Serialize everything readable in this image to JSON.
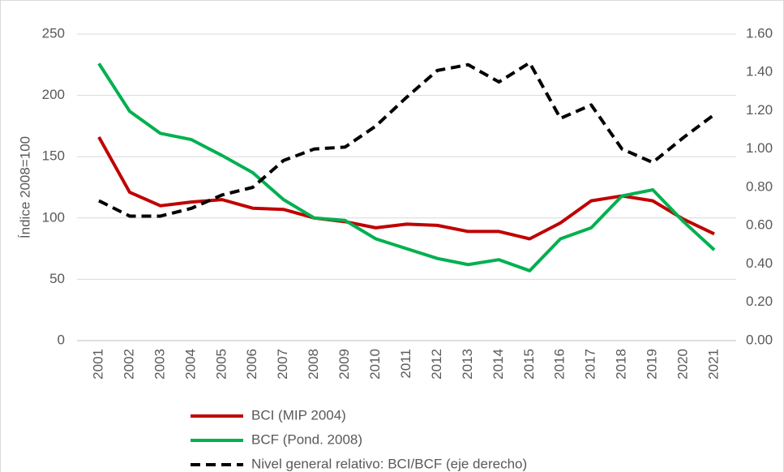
{
  "chart_data": {
    "type": "line",
    "y_label": "Índice 2008=100",
    "categories": [
      "2001",
      "2002",
      "2003",
      "2004",
      "2005",
      "2006",
      "2007",
      "2008",
      "2009",
      "2010",
      "2011",
      "2012",
      "2013",
      "2014",
      "2015",
      "2016",
      "2017",
      "2018",
      "2019",
      "2020",
      "2021"
    ],
    "series": [
      {
        "name": "BCI (MIP 2004)",
        "color": "#c00000",
        "values": [
          166,
          121,
          110,
          113,
          115,
          108,
          107,
          100,
          97,
          92,
          95,
          94,
          89,
          89,
          83,
          96,
          114,
          118,
          114,
          99,
          87
        ]
      },
      {
        "name": "BCF (Pond. 2008)",
        "color": "#00b050",
        "values": [
          226,
          187,
          169,
          164,
          151,
          137,
          115,
          100,
          98,
          83,
          75,
          67,
          62,
          66,
          57,
          83,
          92,
          118,
          123,
          97,
          74
        ]
      },
      {
        "name": "Nivel general relativo: BCI/BCF (eje derecho)",
        "color": "#000000",
        "line_style": "dashed",
        "axis": "y2",
        "values": [
          0.73,
          0.65,
          0.65,
          0.69,
          0.76,
          0.8,
          0.94,
          1.0,
          1.01,
          1.12,
          1.27,
          1.41,
          1.44,
          1.35,
          1.45,
          1.16,
          1.23,
          1.0,
          0.93,
          1.06,
          1.18
        ]
      }
    ],
    "ylim": [
      0,
      250
    ],
    "yticks": [
      0,
      50,
      100,
      150,
      200,
      250
    ],
    "y2lim": [
      0,
      1.6
    ],
    "y2ticks": [
      {
        "value": 0,
        "label": "0.00"
      },
      {
        "value": 0.2,
        "label": "0.20"
      },
      {
        "value": 0.4,
        "label": "0.40"
      },
      {
        "value": 0.6,
        "label": "0.60"
      },
      {
        "value": 0.8,
        "label": "0.80"
      },
      {
        "value": 1.0,
        "label": "1.00"
      },
      {
        "value": 1.2,
        "label": "1.20"
      },
      {
        "value": 1.4,
        "label": "1.40"
      },
      {
        "value": 1.6,
        "label": "1.60"
      }
    ],
    "grid": true
  }
}
